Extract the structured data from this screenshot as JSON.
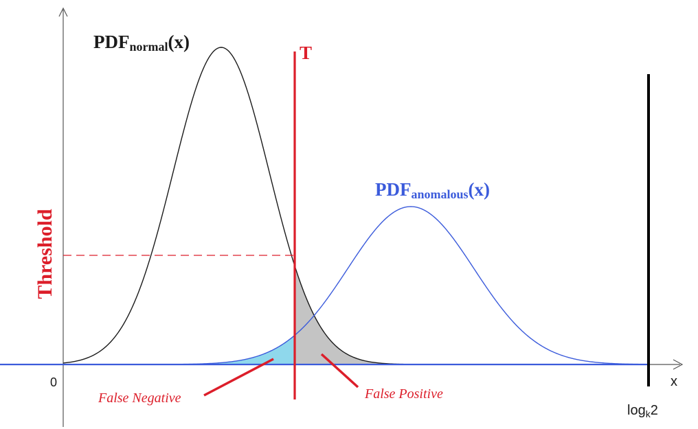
{
  "labels": {
    "pdf_normal_main": "PDF",
    "pdf_normal_sub": "normal",
    "pdf_normal_arg": "(x)",
    "pdf_anomalous_main": "PDF",
    "pdf_anomalous_sub": "anomalous",
    "pdf_anomalous_arg": "(x)",
    "threshold_marker": "T",
    "threshold_axis_label": "Threshold",
    "false_negative": "False Negative",
    "false_positive": "False Positive",
    "origin": "0",
    "x_axis": "x",
    "x_max_main": "log",
    "x_max_sub": "k",
    "x_max_tail": "2"
  },
  "colors": {
    "normal_curve": "#1a1a1a",
    "anomalous_curve": "#3b5bdb",
    "threshold": "#dc1e2a",
    "false_negative_fill": "#8fd8ec",
    "false_positive_fill": "#c4c4c4",
    "axis": "#555555"
  }
}
